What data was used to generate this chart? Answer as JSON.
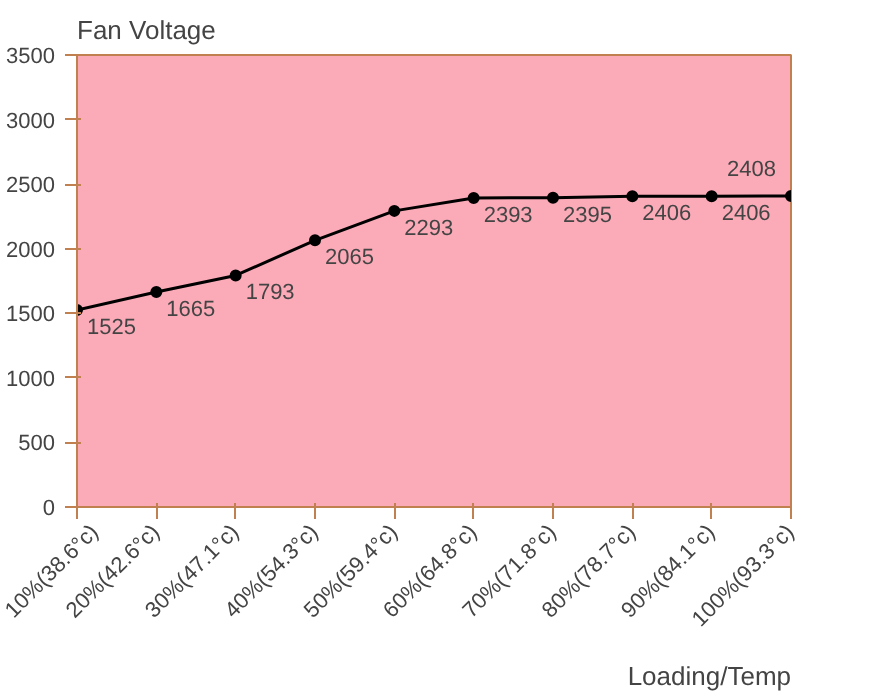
{
  "chart_data": {
    "type": "line",
    "ylabel": "Fan Voltage",
    "xlabel": "Loading/Temp",
    "categories": [
      "10%(38.6°c)",
      "20%(42.6°c)",
      "30%(47.1°c)",
      "40%(54.3°c)",
      "50%(59.4°c)",
      "60%(64.8°c)",
      "70%(71.8°c)",
      "80%(78.7°c)",
      "90%(84.1°c)",
      "100%(93.3°c)"
    ],
    "series": [
      {
        "color": "#000000",
        "values": [
          1525,
          1665,
          1793,
          2065,
          2293,
          2393,
          2395,
          2406,
          2406,
          2408
        ]
      }
    ],
    "ylim": [
      0,
      3500
    ],
    "yticks": [
      0,
      500,
      1000,
      1500,
      2000,
      2500,
      3000,
      3500
    ],
    "data_labels": true,
    "marker": "circle",
    "line_style": "solid",
    "grid": false
  }
}
